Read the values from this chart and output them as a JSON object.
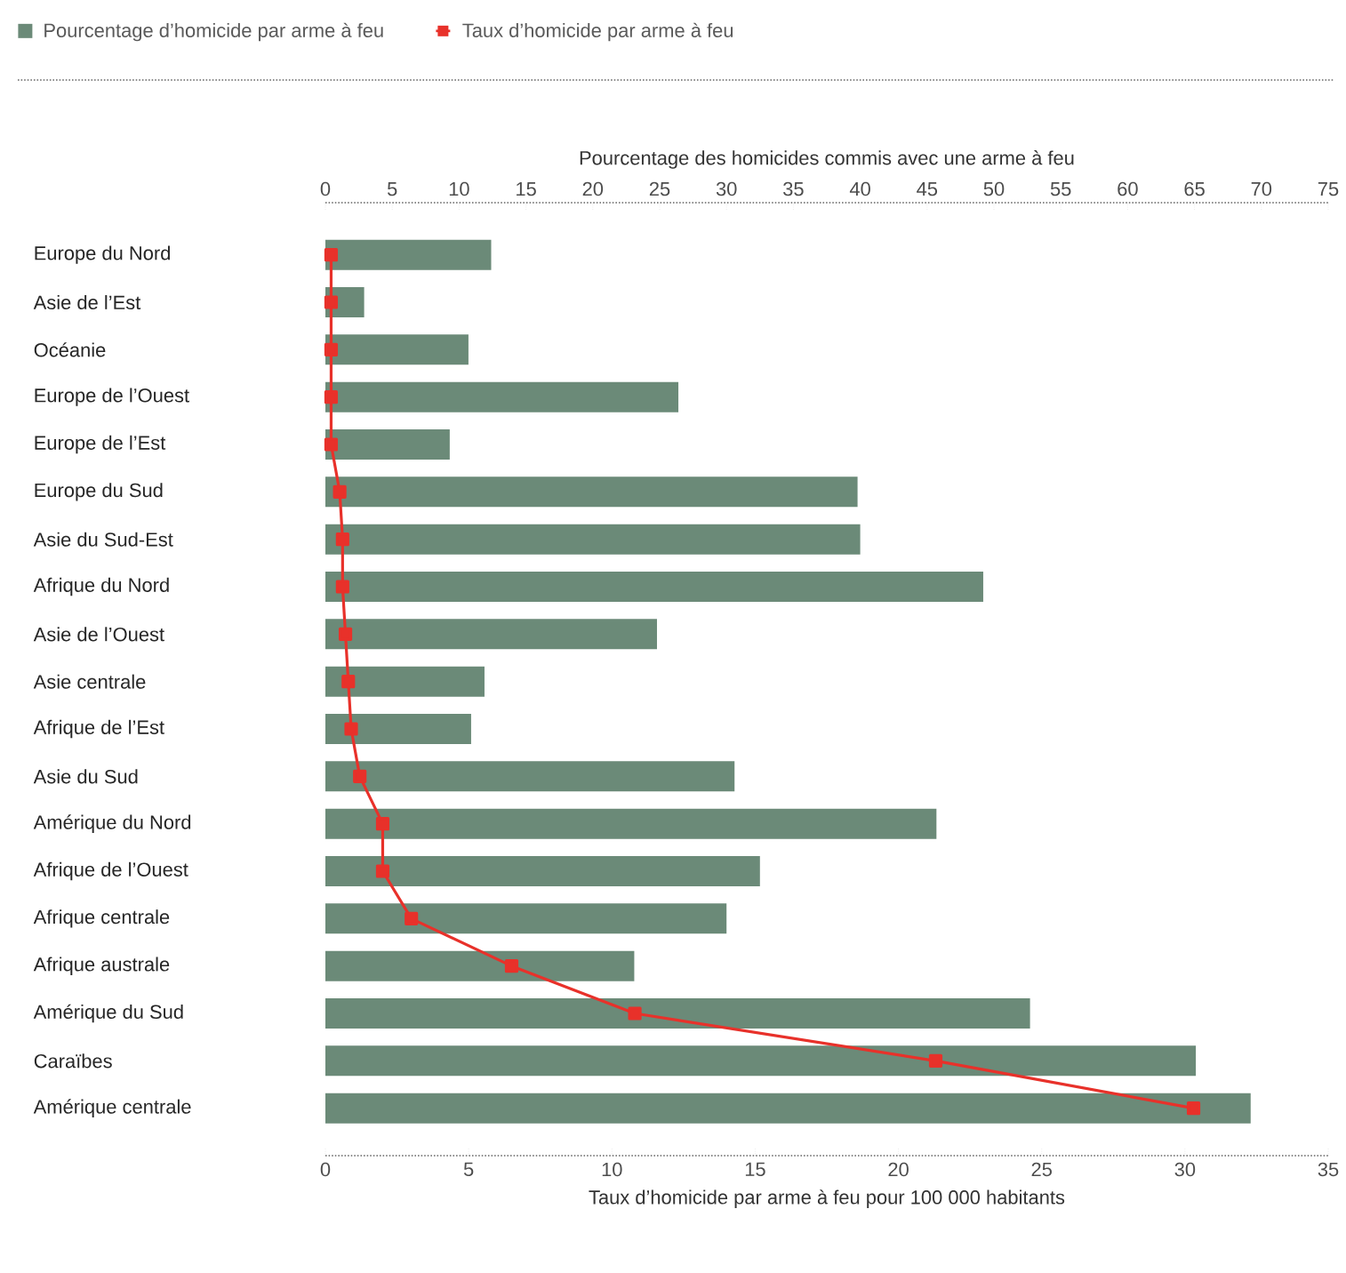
{
  "chart_data": {
    "type": "bar",
    "orientation": "horizontal",
    "categories": [
      "Europe du Nord",
      "Asie de l’Est",
      "Océanie",
      "Europe de l’Ouest",
      "Europe de l’Est",
      "Europe du Sud",
      "Asie du Sud-Est",
      "Afrique du Nord",
      "Asie de l’Ouest",
      "Asie centrale",
      "Afrique de l’Est",
      "Asie du Sud",
      "Amérique du Nord",
      "Afrique de l’Ouest",
      "Afrique centrale",
      "Afrique australe",
      "Amérique du Sud",
      "Caraïbes",
      "Amérique centrale"
    ],
    "series": [
      {
        "name": "Pourcentage d’homicide par arme à feu",
        "axis": "x2",
        "color": "#6b8a78",
        "values": [
          12.4,
          2.9,
          10.7,
          26.4,
          9.3,
          39.8,
          40.0,
          49.2,
          24.8,
          11.9,
          10.9,
          30.6,
          45.7,
          32.5,
          30.0,
          23.1,
          52.7,
          65.1,
          69.2
        ]
      },
      {
        "name": "Taux d’homicide par arme à feu",
        "type": "line",
        "color": "#e8312a",
        "values": [
          0.2,
          0.2,
          0.2,
          0.2,
          0.2,
          0.5,
          0.6,
          0.6,
          0.7,
          0.8,
          0.9,
          1.2,
          2.0,
          2.0,
          3.0,
          6.5,
          10.8,
          21.3,
          30.3
        ]
      }
    ],
    "x2label": "Pourcentage des homicides commis avec une arme à feu",
    "x2lim": [
      0,
      75
    ],
    "x2ticks": [
      0,
      5,
      10,
      15,
      20,
      25,
      30,
      35,
      40,
      45,
      50,
      55,
      60,
      65,
      70,
      75
    ],
    "xlabel": "Taux d’homicide par arme à feu pour 100 000 habitants",
    "xlim": [
      0,
      35
    ],
    "xticks": [
      0,
      5,
      10,
      15,
      20,
      25,
      30,
      35
    ],
    "legend": "top",
    "marker": "square",
    "line_style": "solid"
  }
}
